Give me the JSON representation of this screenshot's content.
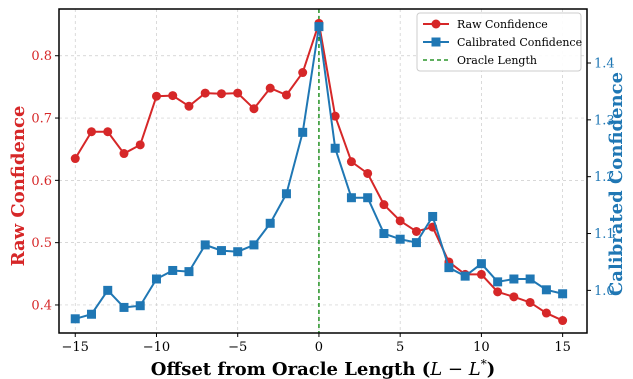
{
  "chart_data": {
    "type": "line",
    "xlabel": "Offset from Oracle Length (L − L*)",
    "xlabel_parts": {
      "main": "Offset from Oracle Length (",
      "L": "L",
      "minus": " − ",
      "Lstar": "L",
      "star": "*",
      "close": ")"
    },
    "ylabel_left": "Raw Confidence",
    "ylabel_right": "Calibrated Confidence",
    "xlim": [
      -16,
      16.5
    ],
    "ylim_left": [
      0.355,
      0.875
    ],
    "ylim_right": [
      0.925,
      1.495
    ],
    "x_ticks": [
      -15,
      -10,
      -5,
      0,
      5,
      10,
      15
    ],
    "y_ticks_left": [
      0.4,
      0.5,
      0.6,
      0.7,
      0.8
    ],
    "y_ticks_right": [
      1.0,
      1.1,
      1.2,
      1.3,
      1.4
    ],
    "grid": true,
    "legend_position": "top-right",
    "x": [
      -15,
      -14,
      -13,
      -12,
      -11,
      -10,
      -9,
      -8,
      -7,
      -6,
      -5,
      -4,
      -3,
      -2,
      -1,
      0,
      1,
      2,
      3,
      4,
      5,
      6,
      7,
      8,
      9,
      10,
      11,
      12,
      13,
      14,
      15
    ],
    "series": [
      {
        "name": "Raw Confidence",
        "axis": "left",
        "color": "#d62728",
        "marker": "circle",
        "values": [
          0.635,
          0.678,
          0.678,
          0.643,
          0.657,
          0.735,
          0.736,
          0.719,
          0.74,
          0.739,
          0.74,
          0.715,
          0.748,
          0.737,
          0.773,
          0.852,
          0.703,
          0.63,
          0.611,
          0.561,
          0.535,
          0.518,
          0.525,
          0.469,
          0.449,
          0.449,
          0.421,
          0.413,
          0.404,
          0.387,
          0.375
        ]
      },
      {
        "name": "Calibrated Confidence",
        "axis": "right",
        "color": "#1f77b4",
        "marker": "square",
        "values": [
          0.95,
          0.958,
          1.0,
          0.97,
          0.973,
          1.02,
          1.035,
          1.033,
          1.08,
          1.07,
          1.068,
          1.08,
          1.118,
          1.17,
          1.278,
          1.464,
          1.25,
          1.163,
          1.163,
          1.1,
          1.09,
          1.084,
          1.13,
          1.04,
          1.025,
          1.047,
          1.015,
          1.02,
          1.02,
          1.001,
          0.994
        ]
      }
    ],
    "reference_line": {
      "name": "Oracle Length",
      "x": 0,
      "color": "#008000",
      "style": "dashed"
    }
  }
}
